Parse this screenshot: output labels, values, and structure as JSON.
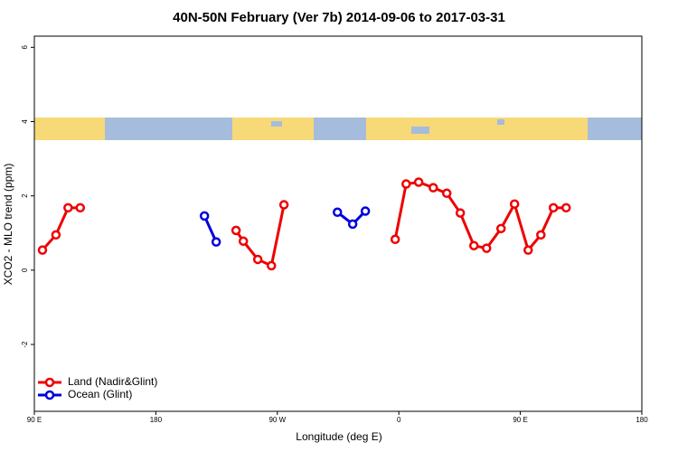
{
  "chart_data": {
    "type": "line",
    "title": "40N-50N February (Ver 7b)   2014-09-06 to 2017-03-31",
    "x_label": "Longitude (deg E)",
    "y_label": "XCO2 - MLO trend (ppm)",
    "xlim": [
      -270,
      180
    ],
    "xticks": [
      {
        "value": -270,
        "label": "90 E"
      },
      {
        "value": -180,
        "label": "180"
      },
      {
        "value": -90,
        "label": "90 W"
      },
      0,
      {
        "value": 90,
        "label": "90 E"
      },
      180
    ],
    "ylim": [
      -3.8,
      6.3
    ],
    "yticks": [
      -2,
      0,
      2,
      4,
      6
    ],
    "legend": "bottom-left",
    "series": [
      {
        "name": "Land (Nadir&Glint)",
        "color": "#ee0000",
        "x": [
          -264,
          -254,
          -245,
          -236,
          null,
          -120.6,
          -115.2,
          -104.5,
          -94.4,
          -85.1,
          null,
          -2.7,
          5.4,
          14.7,
          25.5,
          35.5,
          45.5,
          55.6,
          65,
          75.7,
          85.7,
          95.8,
          105.2,
          114.5,
          123.9
        ],
        "values": [
          0.54,
          0.95,
          1.68,
          1.68,
          null,
          1.07,
          0.78,
          0.29,
          0.12,
          1.76,
          null,
          0.83,
          2.32,
          2.37,
          2.22,
          2.07,
          1.54,
          0.66,
          0.59,
          1.12,
          1.78,
          0.54,
          0.95,
          1.68,
          1.68
        ]
      },
      {
        "name": "Ocean (Glint)",
        "color": "#0000dd",
        "x": [
          -144,
          -135.3,
          null,
          -45.5,
          -34.2,
          -24.8
        ],
        "values": [
          1.46,
          0.76,
          null,
          1.56,
          1.24,
          1.59
        ]
      }
    ]
  }
}
